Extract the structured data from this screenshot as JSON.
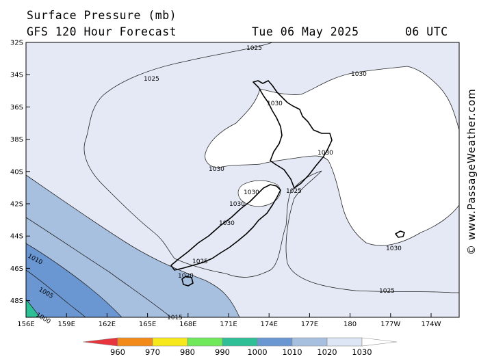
{
  "header": {
    "title": "Surface Pressure (mb)",
    "model": "GFS 120 Hour Forecast",
    "date": "Tue 06 May 2025",
    "time": "06 UTC"
  },
  "map": {
    "region": "New Zealand",
    "lat_labels": [
      "32S",
      "34S",
      "36S",
      "38S",
      "40S",
      "42S",
      "44S",
      "46S",
      "48S"
    ],
    "lon_labels": [
      "156E",
      "159E",
      "162E",
      "165E",
      "168E",
      "171E",
      "174E",
      "177E",
      "180",
      "177W",
      "174W"
    ],
    "contour_labels": [
      "1025",
      "1030",
      "1025",
      "1030",
      "1030",
      "1030",
      "1025",
      "1030",
      "1030",
      "1030",
      "1030",
      "1025",
      "1020",
      "1025",
      "1030",
      "1010",
      "1005",
      "1000",
      "1015"
    ],
    "colors": {
      "ocean_bg": "#e4e9f5",
      "high_1030": "#ffffff",
      "band_1020": "#a8c0e0",
      "band_1010": "#6a96d2",
      "band_1000": "#2fbf96"
    }
  },
  "legend": {
    "labels": [
      "960",
      "970",
      "980",
      "990",
      "1000",
      "1010",
      "1020",
      "1030"
    ],
    "colors": [
      "#e8343c",
      "#f28a1a",
      "#f6e81a",
      "#6fe85a",
      "#2fbf96",
      "#6a96d2",
      "#a8c0e0",
      "#dde6f5",
      "#ffffff"
    ]
  },
  "credit": "© www.PassageWeather.com"
}
